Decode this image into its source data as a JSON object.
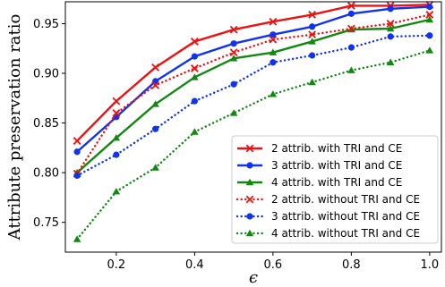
{
  "chart_data": {
    "type": "line",
    "title": "",
    "xlabel": "ϵ",
    "ylabel": "Attribute preservation ratio",
    "xlim": [
      0.07,
      1.03
    ],
    "ylim": [
      0.72,
      0.972
    ],
    "xticks": [
      0.2,
      0.4,
      0.6,
      0.8,
      1.0
    ],
    "xtick_labels": [
      "0.2",
      "0.4",
      "0.6",
      "0.8",
      "1.0"
    ],
    "yticks": [
      0.75,
      0.8,
      0.85,
      0.9,
      0.95
    ],
    "ytick_labels": [
      "0.75",
      "0.80",
      "0.85",
      "0.90",
      "0.95"
    ],
    "grid": false,
    "legend_position": "lower-right",
    "x": [
      0.1,
      0.2,
      0.3,
      0.4,
      0.5,
      0.6,
      0.7,
      0.8,
      0.9,
      1.0
    ],
    "series": [
      {
        "name": "2 attrib. with TRI and CE",
        "color": "#ee1111",
        "line": "solid",
        "marker": "x",
        "values": [
          0.832,
          0.872,
          0.906,
          0.932,
          0.944,
          0.952,
          0.959,
          0.968,
          0.968,
          0.969
        ]
      },
      {
        "name": "3 attrib. with TRI and CE",
        "color": "#1133ee",
        "line": "solid",
        "marker": "circle",
        "values": [
          0.821,
          0.856,
          0.892,
          0.917,
          0.93,
          0.939,
          0.947,
          0.96,
          0.965,
          0.967
        ]
      },
      {
        "name": "4 attrib. with TRI and CE",
        "color": "#118811",
        "line": "solid",
        "marker": "triangle",
        "values": [
          0.8,
          0.835,
          0.869,
          0.896,
          0.915,
          0.921,
          0.932,
          0.944,
          0.945,
          0.954
        ]
      },
      {
        "name": "2 attrib. without TRI and CE",
        "color": "#ee1111",
        "line": "dotted",
        "marker": "x",
        "values": [
          0.799,
          0.86,
          0.888,
          0.905,
          0.921,
          0.934,
          0.939,
          0.945,
          0.95,
          0.959
        ]
      },
      {
        "name": "3 attrib. without TRI and CE",
        "color": "#1133ee",
        "line": "dotted",
        "marker": "circle",
        "values": [
          0.797,
          0.818,
          0.844,
          0.872,
          0.889,
          0.911,
          0.918,
          0.926,
          0.937,
          0.938
        ]
      },
      {
        "name": "4 attrib. without TRI and CE",
        "color": "#118811",
        "line": "dotted",
        "marker": "triangle",
        "values": [
          0.733,
          0.781,
          0.805,
          0.841,
          0.86,
          0.879,
          0.891,
          0.903,
          0.911,
          0.923
        ]
      }
    ]
  }
}
